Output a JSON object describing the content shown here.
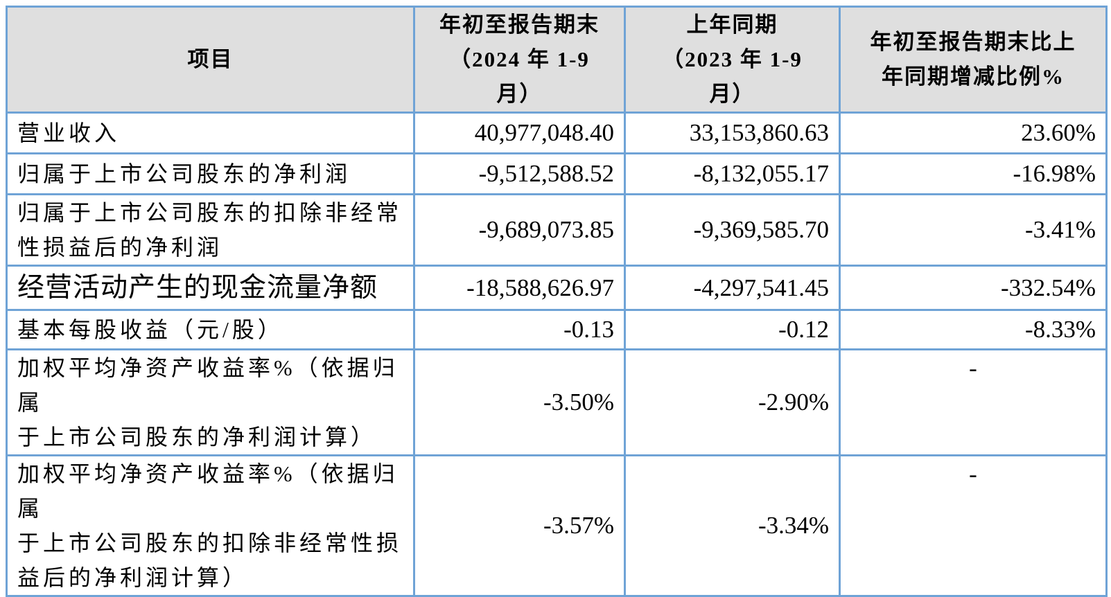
{
  "colors": {
    "border": "#6FA3D6",
    "header_bg": "#DFDFDF",
    "text": "#000000"
  },
  "table": {
    "header": {
      "item": "项目",
      "current": "年初至报告期末\n（2024 年 1-9\n月）",
      "prior": "上年同期\n（2023 年 1-9\n月）",
      "change": "年初至报告期末比上\n年同期增减比例%"
    },
    "rows": [
      {
        "item": "营业收入",
        "current": "40,977,048.40",
        "prior": "33,153,860.63",
        "change": "23.60%"
      },
      {
        "item": "归属于上市公司股东的净利润",
        "current": "-9,512,588.52",
        "prior": "-8,132,055.17",
        "change": "-16.98%"
      },
      {
        "item": "归属于上市公司股东的扣除非经常\n性损益后的净利润",
        "current": "-9,689,073.85",
        "prior": "-9,369,585.70",
        "change": "-3.41%"
      },
      {
        "item": "经营活动产生的现金流量净额",
        "current": "-18,588,626.97",
        "prior": "-4,297,541.45",
        "change": "-332.54%"
      },
      {
        "item": "基本每股收益（元/股）",
        "current": "-0.13",
        "prior": "-0.12",
        "change": "-8.33%"
      },
      {
        "item": "加权平均净资产收益率%（依据归属\n于上市公司股东的净利润计算）",
        "current": "-3.50%",
        "prior": "-2.90%",
        "change": "-"
      },
      {
        "item": "加权平均净资产收益率%（依据归属\n于上市公司股东的扣除非经常性损\n益后的净利润计算）",
        "current": "-3.57%",
        "prior": "-3.34%",
        "change": "-"
      }
    ]
  }
}
